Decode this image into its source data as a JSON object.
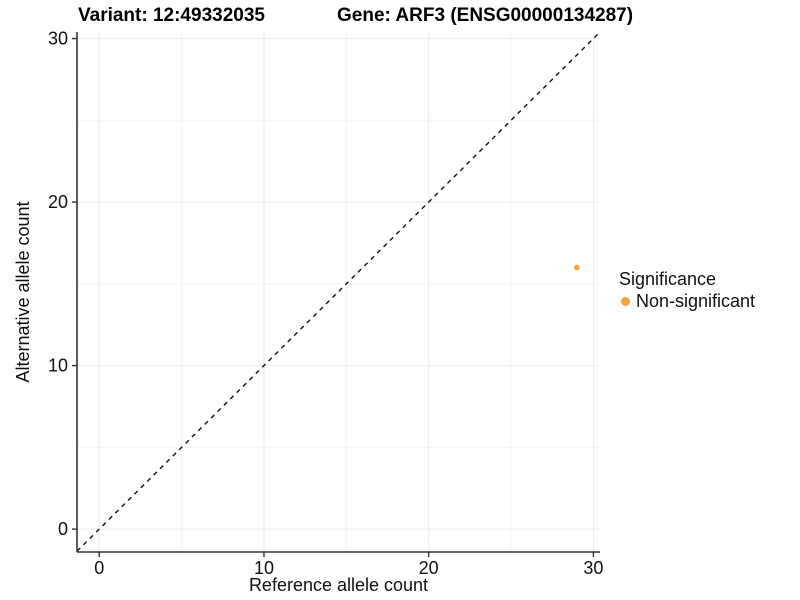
{
  "titles": {
    "variant": "Variant: 12:49332035",
    "gene": "Gene: ARF3 (ENSG00000134287)"
  },
  "colors": {
    "point": "#F9A242",
    "axis": "#333333",
    "grid_major": "#EBEBEB",
    "grid_minor": "#F5F5F5",
    "identity_line": "#111111",
    "text": "#111111",
    "background": "#FFFFFF"
  },
  "chart_data": {
    "type": "scatter",
    "title_left": "Variant: 12:49332035",
    "title_right": "Gene: ARF3 (ENSG00000134287)",
    "xlabel": "Reference allele count",
    "ylabel": "Alternative allele count",
    "xlim": [
      -1.35,
      30.4
    ],
    "ylim": [
      -1.4,
      30.4
    ],
    "x_ticks": [
      0,
      10,
      20,
      30
    ],
    "y_ticks": [
      0,
      10,
      20,
      30
    ],
    "x_minor_ticks": [
      5,
      15,
      25
    ],
    "y_minor_ticks": [
      5,
      15,
      25
    ],
    "grid": true,
    "reference_line": {
      "type": "identity",
      "slope": 1,
      "intercept": 0,
      "style": "dashed"
    },
    "series": [
      {
        "name": "Non-significant",
        "color": "#F9A242",
        "points": [
          {
            "x": 29,
            "y": 16
          }
        ]
      }
    ],
    "legend": {
      "title": "Significance",
      "position": "right",
      "entries": [
        {
          "label": "Non-significant",
          "color": "#F9A242"
        }
      ]
    }
  }
}
